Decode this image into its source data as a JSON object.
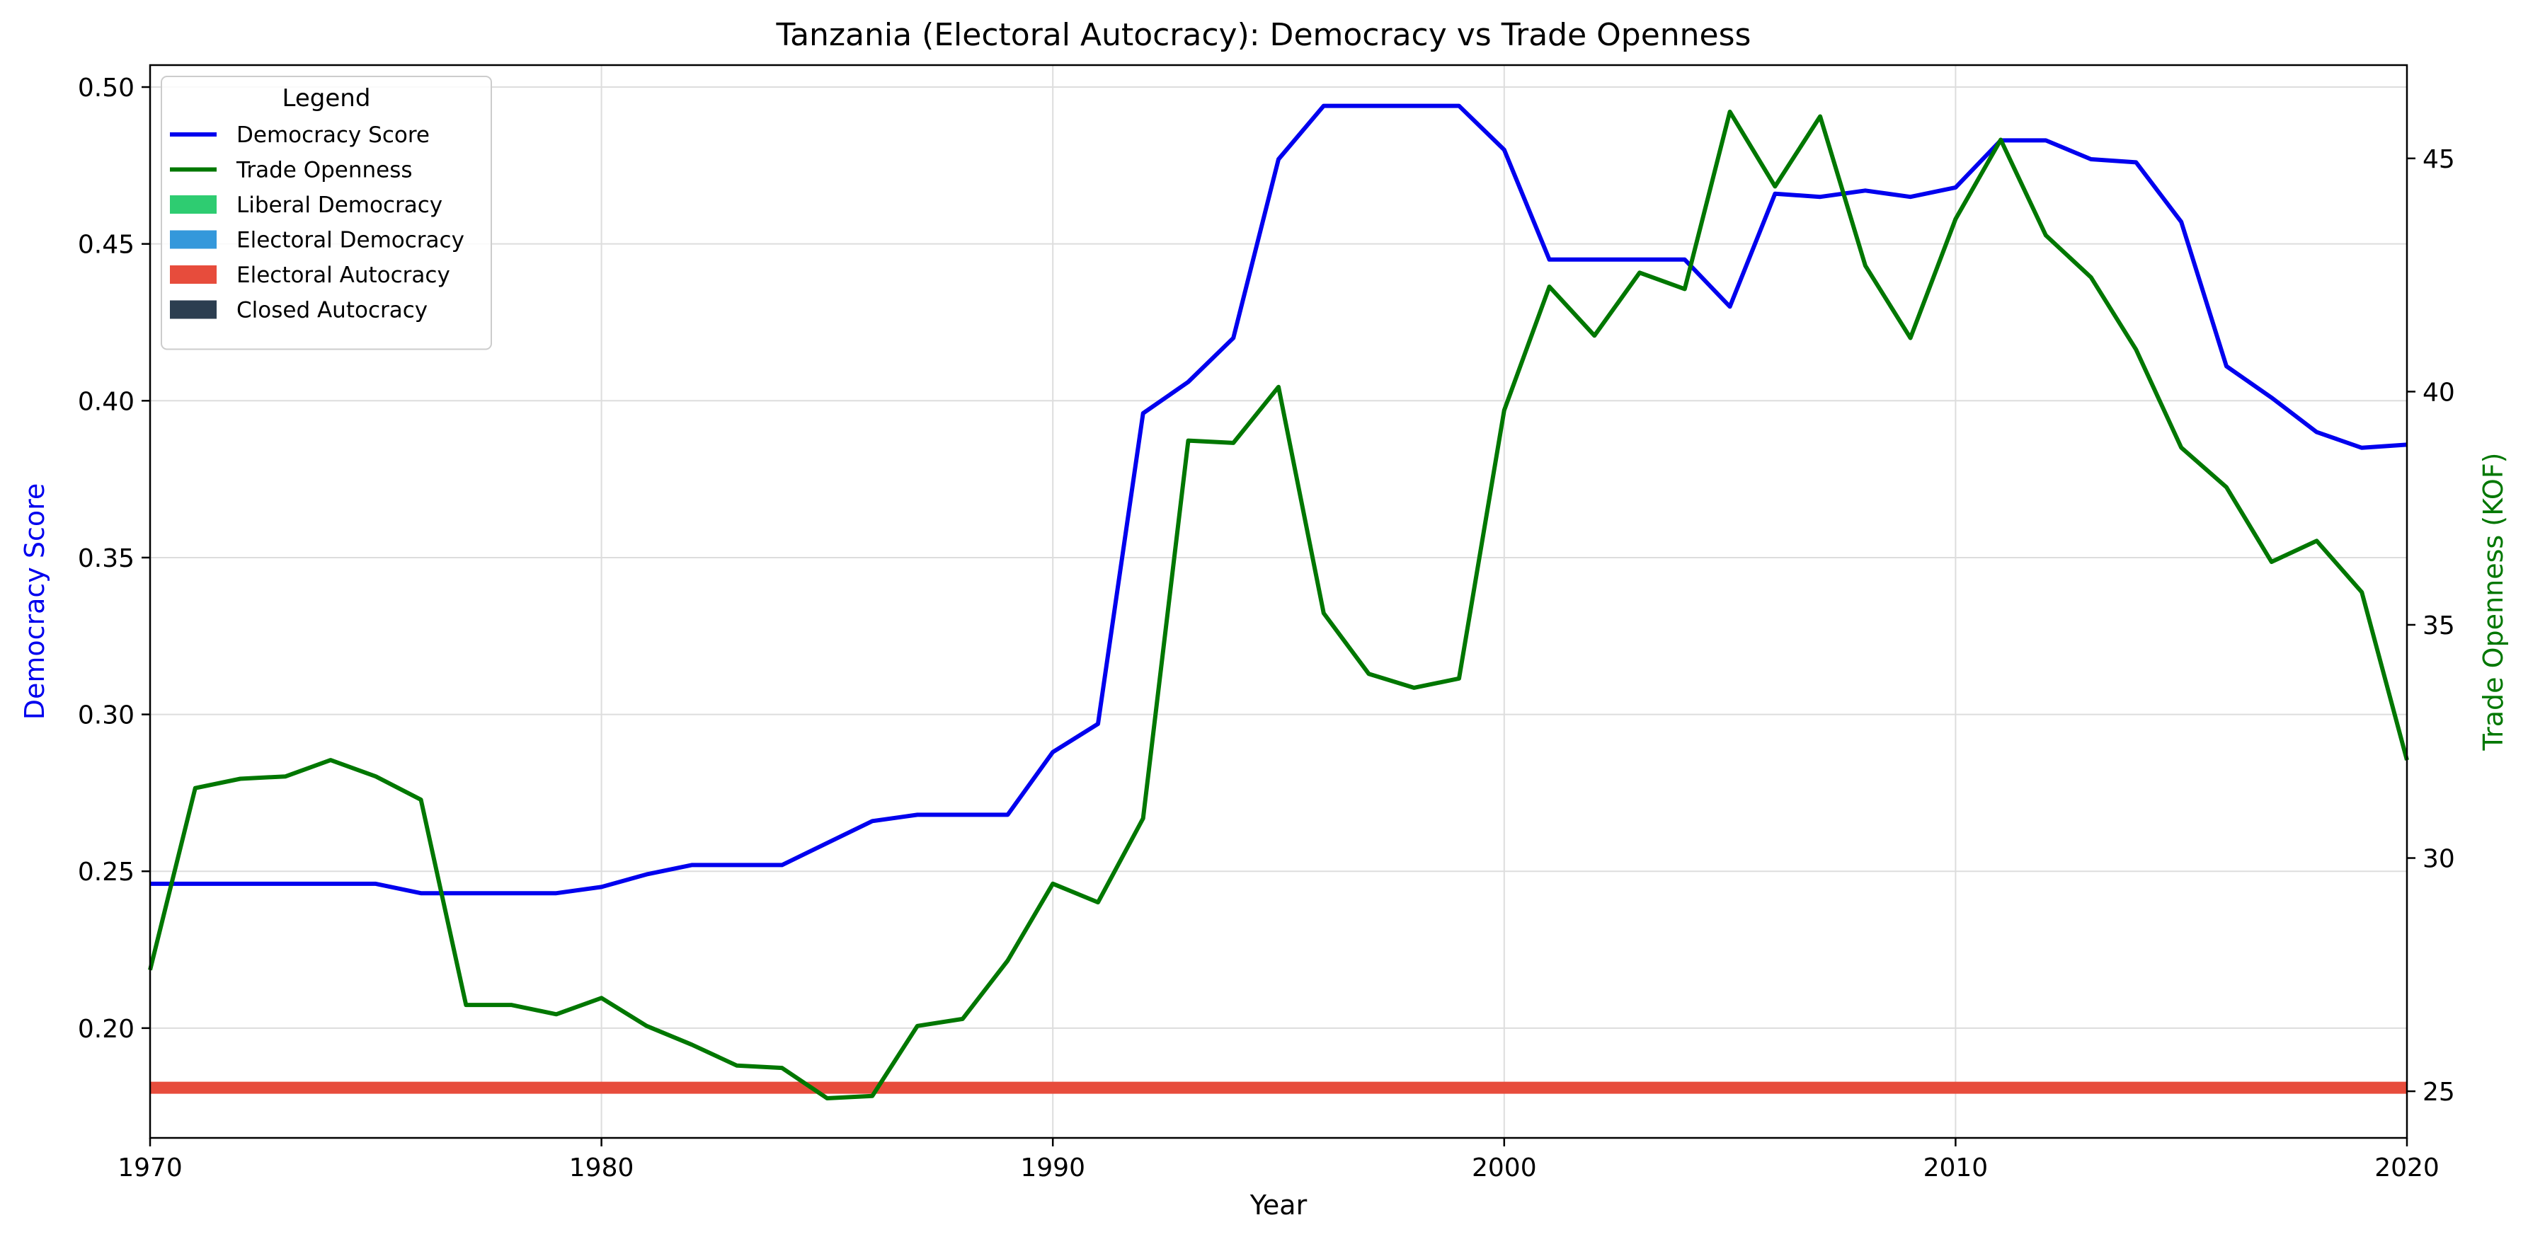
{
  "chart_data": {
    "type": "line",
    "title": "Tanzania (Electoral Autocracy): Democracy vs Trade Openness",
    "xlabel": "Year",
    "ylabel_left": "Democracy Score",
    "ylabel_right": "Trade Openness (KOF)",
    "xlim": [
      1970,
      2020
    ],
    "ylim_left": [
      0.165,
      0.507
    ],
    "ylim_right": [
      24,
      47
    ],
    "x_ticks": [
      1970,
      1980,
      1990,
      2000,
      2010,
      2020
    ],
    "y_ticks_left": [
      0.2,
      0.25,
      0.3,
      0.35,
      0.4,
      0.45,
      0.5
    ],
    "y_ticks_right": [
      25,
      30,
      35,
      40,
      45
    ],
    "grid": true,
    "legend_title": "Legend",
    "legend_placement": "top-left",
    "x": [
      1970,
      1971,
      1972,
      1973,
      1974,
      1975,
      1976,
      1977,
      1978,
      1979,
      1980,
      1981,
      1982,
      1983,
      1984,
      1985,
      1986,
      1987,
      1988,
      1989,
      1990,
      1991,
      1992,
      1993,
      1994,
      1995,
      1996,
      1997,
      1998,
      1999,
      2000,
      2001,
      2002,
      2003,
      2004,
      2005,
      2006,
      2007,
      2008,
      2009,
      2010,
      2011,
      2012,
      2013,
      2014,
      2015,
      2016,
      2017,
      2018,
      2019,
      2020
    ],
    "series": [
      {
        "name": "Democracy Score",
        "axis": "left",
        "color": "#0000ee",
        "values": [
          0.246,
          0.246,
          0.246,
          0.246,
          0.246,
          0.246,
          0.243,
          0.243,
          0.243,
          0.243,
          0.245,
          0.249,
          0.252,
          0.252,
          0.252,
          0.259,
          0.266,
          0.268,
          0.268,
          0.268,
          0.288,
          0.297,
          0.396,
          0.406,
          0.42,
          0.477,
          0.494,
          0.494,
          0.494,
          0.494,
          0.48,
          0.445,
          0.445,
          0.445,
          0.445,
          0.43,
          0.466,
          0.465,
          0.467,
          0.465,
          0.468,
          0.483,
          0.483,
          0.477,
          0.476,
          0.457,
          0.411,
          0.401,
          0.39,
          0.385,
          0.386
        ]
      },
      {
        "name": "Trade Openness",
        "axis": "right",
        "color": "#007700",
        "values": [
          27.6,
          31.5,
          31.7,
          31.75,
          32.1,
          31.75,
          31.25,
          26.85,
          26.85,
          26.65,
          27.0,
          26.4,
          26.0,
          25.55,
          25.5,
          24.85,
          24.9,
          26.4,
          26.55,
          27.8,
          29.45,
          29.05,
          30.85,
          38.95,
          38.9,
          40.1,
          35.25,
          33.95,
          33.65,
          33.85,
          39.6,
          42.25,
          41.2,
          42.55,
          42.2,
          46.0,
          44.4,
          45.9,
          42.7,
          41.15,
          43.7,
          45.4,
          43.35,
          42.45,
          40.9,
          38.8,
          37.95,
          36.35,
          36.8,
          35.7,
          32.1
        ]
      }
    ],
    "regime_band": {
      "name": "Electoral Autocracy",
      "color": "#e74c3c",
      "level": 0.181,
      "x_range": [
        1970,
        2020
      ]
    },
    "legend": [
      {
        "label": "Democracy Score",
        "kind": "line",
        "color": "#0000ee"
      },
      {
        "label": "Trade Openness",
        "kind": "line",
        "color": "#007700"
      },
      {
        "label": "Liberal Democracy",
        "kind": "patch",
        "color": "#2ecc71"
      },
      {
        "label": "Electoral Democracy",
        "kind": "patch",
        "color": "#3498db"
      },
      {
        "label": "Electoral Autocracy",
        "kind": "patch",
        "color": "#e74c3c"
      },
      {
        "label": "Closed Autocracy",
        "kind": "patch",
        "color": "#2c3e50"
      }
    ]
  }
}
